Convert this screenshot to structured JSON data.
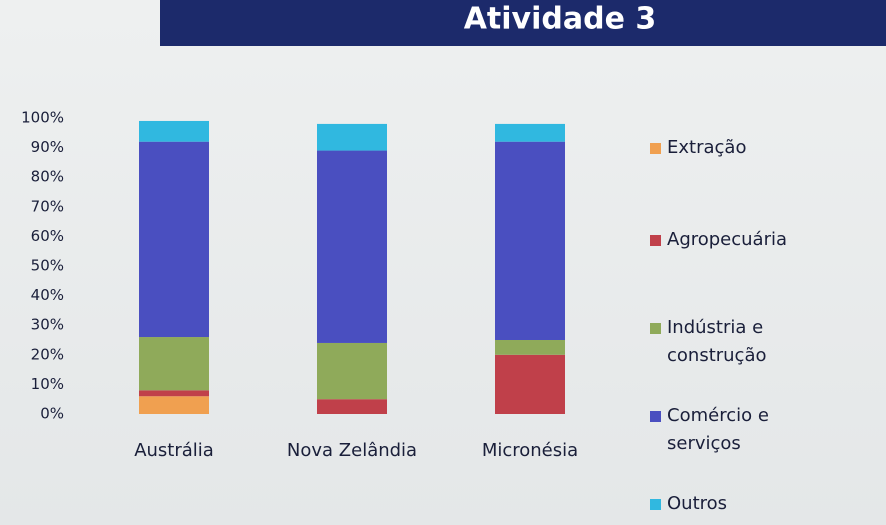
{
  "chart_data": {
    "type": "stacked_bar",
    "title": "Atividade 3",
    "categories": [
      "Austrália",
      "Nova Zelândia",
      "Micronésia"
    ],
    "series": [
      {
        "name": "Extração",
        "color": "#f0a050",
        "values": [
          6,
          0,
          0
        ]
      },
      {
        "name": "Agropecuária",
        "color": "#c0404a",
        "values": [
          2,
          5,
          20
        ]
      },
      {
        "name": "Indústria e construção",
        "color": "#8faa5a",
        "values": [
          18,
          19,
          5
        ]
      },
      {
        "name": "Comércio e serviços",
        "color": "#4a4fc0",
        "values": [
          66,
          65,
          67
        ]
      },
      {
        "name": "Outros",
        "color": "#30b8e0",
        "values": [
          7,
          9,
          6
        ]
      }
    ],
    "ylim": [
      0,
      100
    ],
    "yticks": [
      {
        "value": 0,
        "label": "0%"
      },
      {
        "value": 10,
        "label": "10%"
      },
      {
        "value": 20,
        "label": "20%"
      },
      {
        "value": 30,
        "label": "30%"
      },
      {
        "value": 40,
        "label": "40%"
      },
      {
        "value": 50,
        "label": "50%"
      },
      {
        "value": 60,
        "label": "60%"
      },
      {
        "value": 70,
        "label": "70%"
      },
      {
        "value": 80,
        "label": "80%"
      },
      {
        "value": 90,
        "label": "90%"
      },
      {
        "value": 100,
        "label": "100%"
      }
    ],
    "grid": false,
    "legend": "right"
  }
}
